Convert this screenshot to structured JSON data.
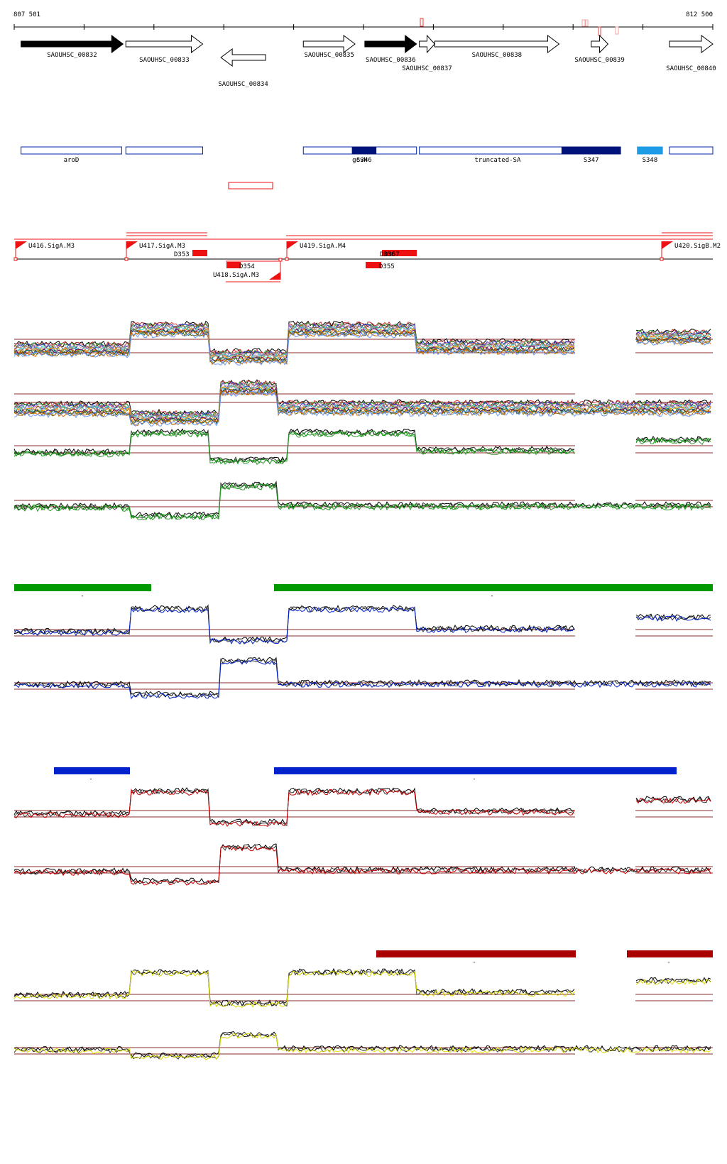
{
  "coords": {
    "start": "807 501",
    "end": "812 500",
    "range_start": 807501,
    "range_end": 812500
  },
  "genes": [
    {
      "name": "SAOUHSC_00832",
      "start": 807550,
      "end": 808280,
      "strand": "+",
      "filled": true,
      "label_row": 0
    },
    {
      "name": "SAOUHSC_00833",
      "start": 808300,
      "end": 808850,
      "strand": "+",
      "filled": false,
      "label_row": 1
    },
    {
      "name": "SAOUHSC_00834",
      "start": 808980,
      "end": 809300,
      "strand": "-",
      "filled": false,
      "label_row": 3
    },
    {
      "name": "SAOUHSC_00835",
      "start": 809570,
      "end": 809940,
      "strand": "+",
      "filled": false,
      "label_row": 0
    },
    {
      "name": "SAOUHSC_00836",
      "start": 810010,
      "end": 810380,
      "strand": "+",
      "filled": true,
      "label_row": 1
    },
    {
      "name": "SAOUHSC_00837",
      "start": 810400,
      "end": 810510,
      "strand": "+",
      "filled": false,
      "label_row": 2
    },
    {
      "name": "SAOUHSC_00838",
      "start": 810510,
      "end": 811400,
      "strand": "+",
      "filled": false,
      "label_row": 0
    },
    {
      "name": "SAOUHSC_00839",
      "start": 811630,
      "end": 811750,
      "strand": "+",
      "filled": false,
      "label_row": 1
    },
    {
      "name": "SAOUHSC_00840",
      "start": 812190,
      "end": 812500,
      "strand": "+",
      "filled": false,
      "label_row": 2
    }
  ],
  "annotations": [
    {
      "name": "aroD",
      "start": 807550,
      "end": 808270,
      "fill": "none"
    },
    {
      "name": "",
      "start": 808300,
      "end": 808850,
      "fill": "none"
    },
    {
      "name": "gcvH",
      "start": 809570,
      "end": 810380,
      "fill": "none"
    },
    {
      "name": "S346",
      "start": 809920,
      "end": 810090,
      "fill": "#00137a"
    },
    {
      "name": "truncated-SA",
      "start": 810400,
      "end": 811520,
      "fill": "none"
    },
    {
      "name": "S347",
      "start": 811420,
      "end": 811840,
      "fill": "#00137a"
    },
    {
      "name": "S348",
      "start": 811960,
      "end": 812140,
      "fill": "#1e9be5"
    },
    {
      "name": "",
      "start": 812190,
      "end": 812500,
      "fill": "none"
    }
  ],
  "colors": {
    "condition_1": "#009900",
    "condition_2": "#0022cc",
    "condition_3": "#cc0000",
    "condition_4": "#dddd00",
    "threshold": "#8b2a2a",
    "gene": "#000000",
    "annotation": "#0022aa",
    "promoter": "#ee1111"
  },
  "promoters": [
    {
      "name": "U416.SigA.M3",
      "strand": "+"
    },
    {
      "name": "U417.SigA.M3",
      "strand": "+"
    },
    {
      "name": "U418.SigA.M3",
      "strand": "-"
    },
    {
      "name": "U419.SigA.M4",
      "strand": "+"
    },
    {
      "name": "U420.SigB.M2",
      "strand": "+"
    }
  ],
  "transcripts_down": [
    "D353",
    "D354",
    "D355",
    "D356",
    "D357"
  ],
  "condition_labels": [
    "-",
    "-",
    "-",
    "-",
    "-",
    "-"
  ]
}
